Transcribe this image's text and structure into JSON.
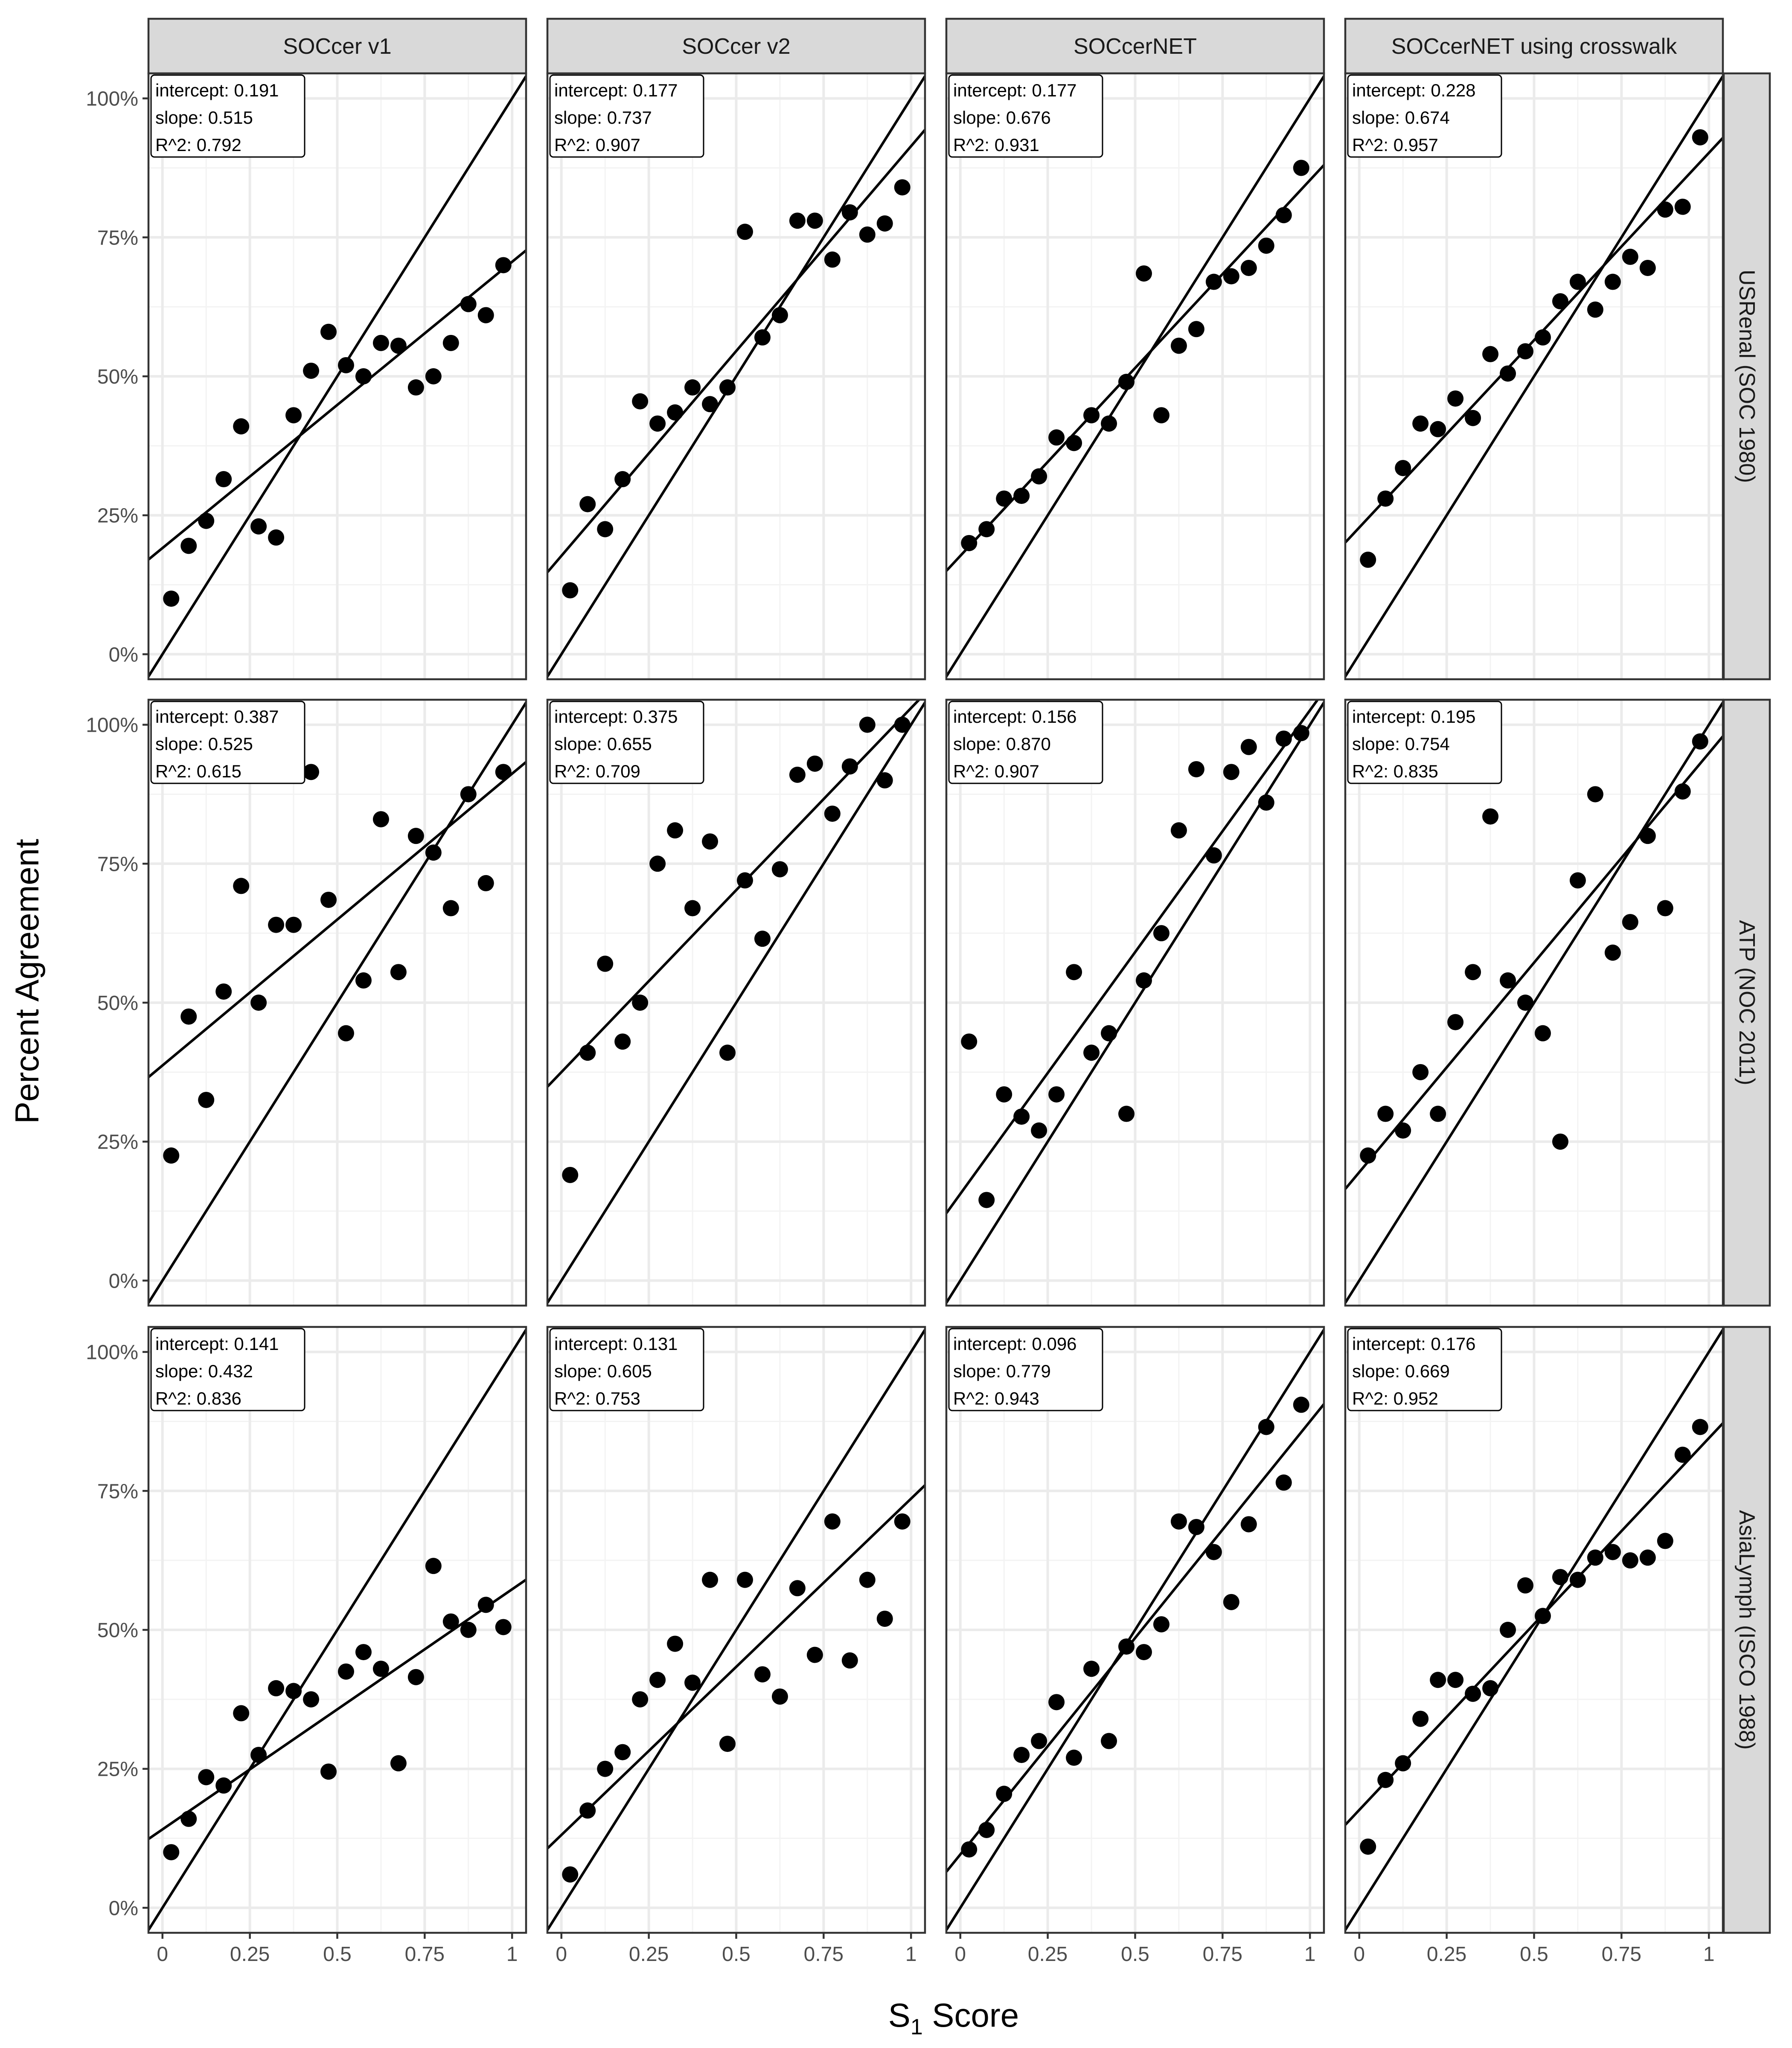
{
  "chart_data": {
    "type": "scatter",
    "xlabel": "S",
    "xlabel_subscript": "1",
    "xlabel_suffix": " Score",
    "ylabel": "Percent Agreement",
    "xlim": [
      -0.04,
      1.04
    ],
    "ylim": [
      -0.045,
      1.045
    ],
    "x_ticks": [
      0,
      0.25,
      0.5,
      0.75,
      1
    ],
    "x_tick_labels": [
      "0",
      "0.25",
      "0.5",
      "0.75",
      "1"
    ],
    "y_ticks": [
      0,
      0.25,
      0.5,
      0.75,
      1
    ],
    "y_tick_labels": [
      "0%",
      "25%",
      "50%",
      "75%",
      "100%"
    ],
    "columns": [
      "SOCcer v1",
      "SOCcer v2",
      "SOCcerNET",
      "SOCcerNET using crosswalk"
    ],
    "rows": [
      "USRenal (SOC 1980)",
      "ATP (NOC 2011)",
      "AsiaLymph (ISCO 1988)"
    ],
    "x": [
      0.025,
      0.075,
      0.125,
      0.175,
      0.225,
      0.275,
      0.325,
      0.375,
      0.425,
      0.475,
      0.525,
      0.575,
      0.625,
      0.675,
      0.725,
      0.775,
      0.825,
      0.875,
      0.925,
      0.975
    ],
    "reference_line": {
      "intercept": 0,
      "slope": 1
    },
    "panels": [
      {
        "row": 0,
        "col": 0,
        "intercept": "0.191",
        "slope": "0.515",
        "r2": "0.792",
        "y": [
          0.1,
          0.195,
          0.24,
          0.315,
          0.41,
          0.23,
          0.21,
          0.43,
          0.51,
          0.58,
          0.52,
          0.5,
          0.56,
          0.555,
          0.48,
          0.5,
          0.56,
          0.63,
          0.61,
          0.7
        ]
      },
      {
        "row": 0,
        "col": 1,
        "intercept": "0.177",
        "slope": "0.737",
        "r2": "0.907",
        "y": [
          0.115,
          0.27,
          0.225,
          0.315,
          0.455,
          0.415,
          0.435,
          0.48,
          0.45,
          0.48,
          0.76,
          0.57,
          0.61,
          0.78,
          0.78,
          0.71,
          0.795,
          0.755,
          0.775,
          0.84
        ]
      },
      {
        "row": 0,
        "col": 2,
        "intercept": "0.177",
        "slope": "0.676",
        "r2": "0.931",
        "y": [
          0.2,
          0.225,
          0.28,
          0.285,
          0.32,
          0.39,
          0.38,
          0.43,
          0.415,
          0.49,
          0.685,
          0.43,
          0.555,
          0.585,
          0.67,
          0.68,
          0.695,
          0.735,
          0.79,
          0.875
        ]
      },
      {
        "row": 0,
        "col": 3,
        "intercept": "0.228",
        "slope": "0.674",
        "r2": "0.957",
        "y": [
          0.17,
          0.28,
          0.335,
          0.415,
          0.405,
          0.46,
          0.425,
          0.54,
          0.505,
          0.545,
          0.57,
          0.635,
          0.67,
          0.62,
          0.67,
          0.715,
          0.695,
          0.8,
          0.805,
          0.93
        ]
      },
      {
        "row": 1,
        "col": 0,
        "intercept": "0.387",
        "slope": "0.525",
        "r2": "0.615",
        "y": [
          0.225,
          0.475,
          0.325,
          0.52,
          0.71,
          0.5,
          0.64,
          0.64,
          0.915,
          0.685,
          0.445,
          0.54,
          0.83,
          0.555,
          0.8,
          0.77,
          0.67,
          0.875,
          0.715,
          0.915
        ]
      },
      {
        "row": 1,
        "col": 1,
        "intercept": "0.375",
        "slope": "0.655",
        "r2": "0.709",
        "y": [
          0.19,
          0.41,
          0.57,
          0.43,
          0.5,
          0.75,
          0.81,
          0.67,
          0.79,
          0.41,
          0.72,
          0.615,
          0.74,
          0.91,
          0.93,
          0.84,
          0.925,
          1.0,
          0.9,
          1.0
        ]
      },
      {
        "row": 1,
        "col": 2,
        "intercept": "0.156",
        "slope": "0.870",
        "r2": "0.907",
        "y": [
          0.43,
          0.145,
          0.335,
          0.295,
          0.27,
          0.335,
          0.555,
          0.41,
          0.445,
          0.3,
          0.54,
          0.625,
          0.81,
          0.92,
          0.765,
          0.915,
          0.96,
          0.86,
          0.975,
          0.985
        ]
      },
      {
        "row": 1,
        "col": 3,
        "intercept": "0.195",
        "slope": "0.754",
        "r2": "0.835",
        "y": [
          0.225,
          0.3,
          0.27,
          0.375,
          0.3,
          0.465,
          0.555,
          0.835,
          0.54,
          0.5,
          0.445,
          0.25,
          0.72,
          0.875,
          0.59,
          0.645,
          0.8,
          0.67,
          0.88,
          0.97
        ]
      },
      {
        "row": 2,
        "col": 0,
        "intercept": "0.141",
        "slope": "0.432",
        "r2": "0.836",
        "y": [
          0.1,
          0.16,
          0.235,
          0.22,
          0.35,
          0.275,
          0.395,
          0.39,
          0.375,
          0.245,
          0.425,
          0.46,
          0.43,
          0.26,
          0.415,
          0.615,
          0.515,
          0.5,
          0.545,
          0.505
        ]
      },
      {
        "row": 2,
        "col": 1,
        "intercept": "0.131",
        "slope": "0.605",
        "r2": "0.753",
        "y": [
          0.06,
          0.175,
          0.25,
          0.28,
          0.375,
          0.41,
          0.475,
          0.405,
          0.59,
          0.295,
          0.59,
          0.42,
          0.38,
          0.575,
          0.455,
          0.695,
          0.445,
          0.59,
          0.52,
          0.695
        ]
      },
      {
        "row": 2,
        "col": 2,
        "intercept": "0.096",
        "slope": "0.779",
        "r2": "0.943",
        "y": [
          0.105,
          0.14,
          0.205,
          0.275,
          0.3,
          0.37,
          0.27,
          0.43,
          0.3,
          0.47,
          0.46,
          0.51,
          0.695,
          0.685,
          0.64,
          0.55,
          0.69,
          0.865,
          0.765,
          0.905
        ]
      },
      {
        "row": 2,
        "col": 3,
        "intercept": "0.176",
        "slope": "0.669",
        "r2": "0.952",
        "y": [
          0.11,
          0.23,
          0.26,
          0.34,
          0.41,
          0.41,
          0.385,
          0.395,
          0.5,
          0.58,
          0.525,
          0.595,
          0.59,
          0.63,
          0.64,
          0.625,
          0.63,
          0.66,
          0.815,
          0.865
        ]
      }
    ]
  }
}
